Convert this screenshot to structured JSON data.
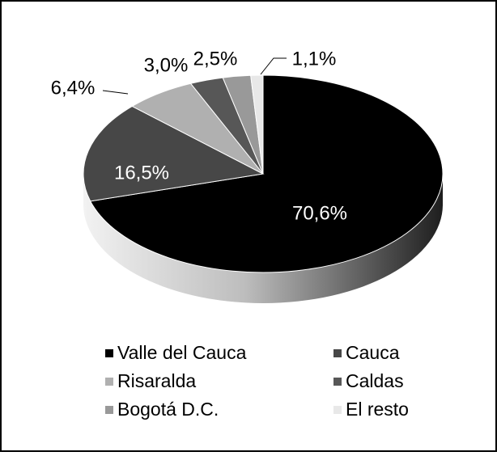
{
  "chart_data": {
    "type": "pie",
    "categories": [
      "Valle del Cauca",
      "Cauca",
      "Risaralda",
      "Caldas",
      "Bogotá D.C.",
      "El resto"
    ],
    "values": [
      70.6,
      16.5,
      6.4,
      3.0,
      2.5,
      1.1
    ],
    "value_labels": [
      "70,6%",
      "16,5%",
      "6,4%",
      "3,0%",
      "2,5%",
      "1,1%"
    ],
    "colors": [
      "#000000",
      "#474747",
      "#b0b0b0",
      "#575757",
      "#999999",
      "#e8e8e8"
    ],
    "legend": "bottom"
  }
}
